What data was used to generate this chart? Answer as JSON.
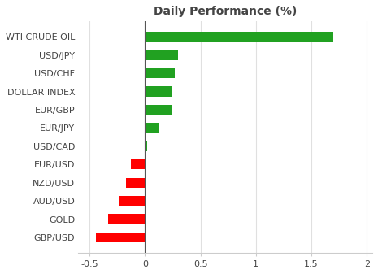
{
  "title": "Daily Performance (%)",
  "categories": [
    "WTI CRUDE OIL",
    "USD/JPY",
    "USD/CHF",
    "DOLLAR INDEX",
    "EUR/GBP",
    "EUR/JPY",
    "USD/CAD",
    "EUR/USD",
    "NZD/USD",
    "AUD/USD",
    "GOLD",
    "GBP/USD"
  ],
  "values": [
    1.7,
    0.3,
    0.27,
    0.25,
    0.24,
    0.13,
    0.02,
    -0.13,
    -0.17,
    -0.23,
    -0.33,
    -0.44
  ],
  "bar_colors_pos": "#21a121",
  "bar_colors_neg": "#ff0000",
  "xlim": [
    -0.6,
    2.05
  ],
  "xticks": [
    -0.5,
    0,
    0.5,
    1,
    1.5,
    2
  ],
  "fig_background": "#ffffff",
  "axes_background": "#ffffff",
  "title_fontsize": 10,
  "label_fontsize": 8,
  "tick_fontsize": 8,
  "bar_height": 0.55
}
